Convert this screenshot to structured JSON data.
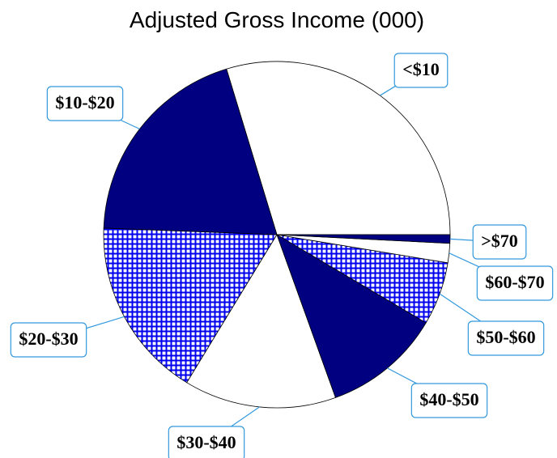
{
  "chart_data": {
    "type": "pie",
    "title": "Adjusted Gross Income (000)",
    "categories": [
      "<$10",
      "$10-$20",
      "$20-$30",
      "$30-$40",
      "$40-$50",
      "$50-$60",
      "$60-$70",
      ">$70"
    ],
    "values": [
      29.7,
      19.7,
      16.9,
      14.2,
      11.0,
      5.9,
      1.8,
      0.8
    ],
    "colors": [
      "#ffffff",
      "#000080",
      "#ffffff",
      "#ffffff",
      "#000080",
      "#ffffff",
      "#ffffff",
      "#000080"
    ],
    "hatched": [
      false,
      false,
      true,
      false,
      false,
      true,
      false,
      false
    ]
  }
}
